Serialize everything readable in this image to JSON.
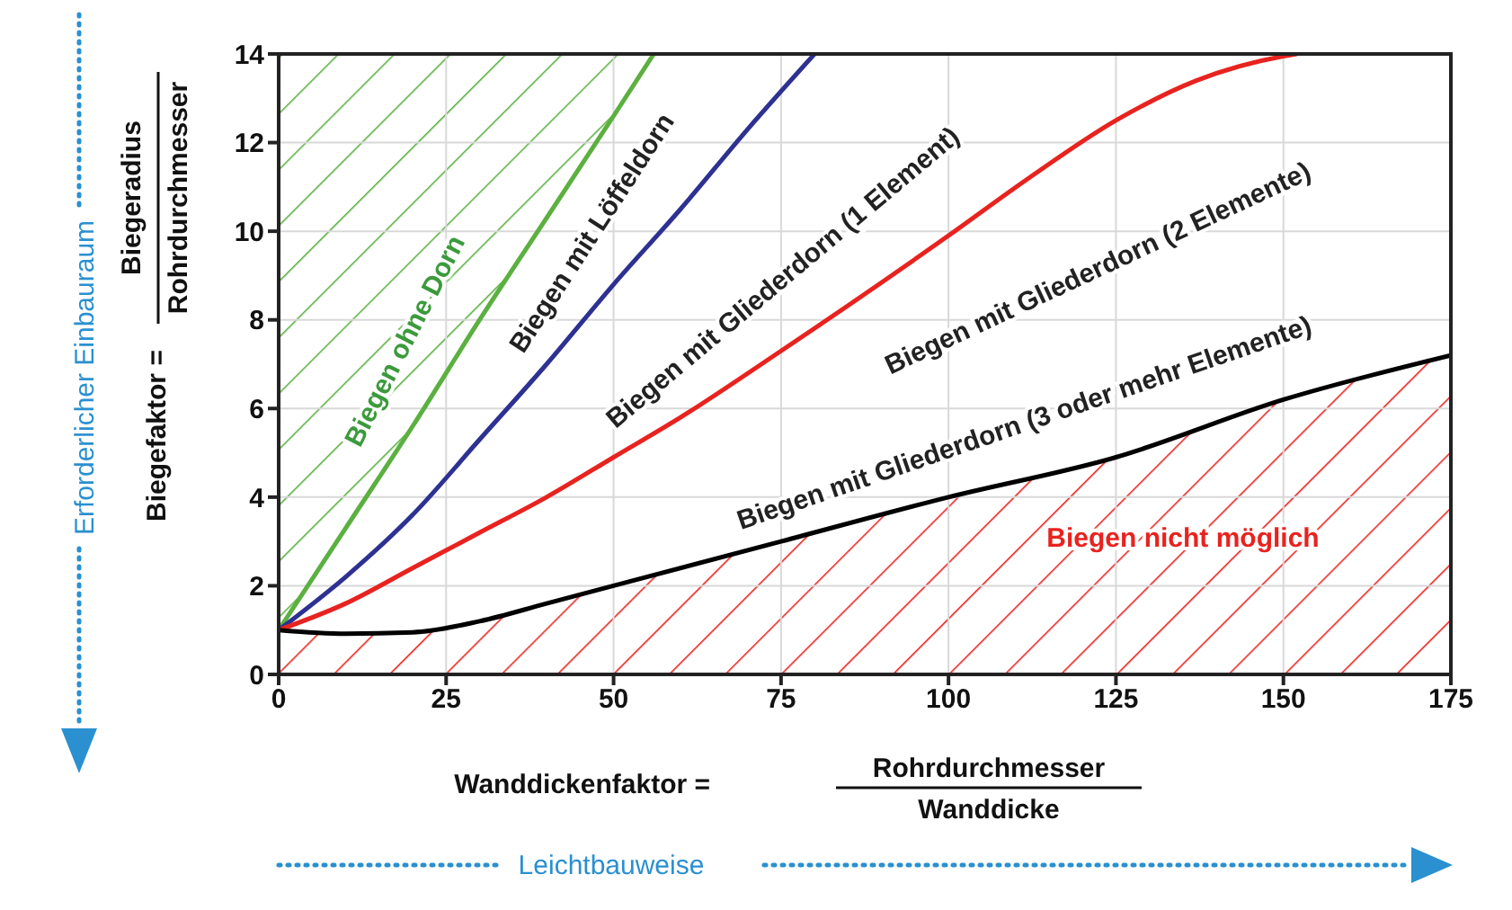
{
  "chart_data": {
    "type": "line",
    "xlabel": "Wanddickenfaktor = Rohrdurchmesser Wanddicke",
    "ylabel": "Biegefaktor = Biegeradius Rohrdurchmesser",
    "xlim": [
      0,
      175
    ],
    "xticks": [
      0,
      25,
      50,
      75,
      100,
      125,
      150,
      175
    ],
    "ylim": [
      0,
      14
    ],
    "yticks": [
      0,
      2,
      4,
      6,
      8,
      10,
      12,
      14
    ],
    "grid": true,
    "series": [
      {
        "color": "#5bb040",
        "x": [
          0,
          10,
          20,
          30,
          40,
          50,
          56
        ],
        "values": [
          1,
          3.3,
          5.6,
          8,
          10.3,
          12.6,
          14
        ]
      },
      {
        "color": "#2e3192",
        "x": [
          0,
          10,
          20,
          30,
          40,
          50,
          60,
          70,
          80
        ],
        "values": [
          1,
          2.2,
          3.6,
          5.3,
          7,
          8.8,
          10.5,
          12.3,
          14
        ]
      },
      {
        "color": "#e8231f",
        "x": [
          0,
          10,
          20,
          30,
          40,
          50,
          60,
          75,
          100,
          112,
          125,
          137,
          150,
          152
        ],
        "values": [
          1,
          1.6,
          2.4,
          3.2,
          4,
          4.9,
          5.8,
          7.3,
          9.9,
          11.2,
          12.5,
          13.4,
          13.95,
          14
        ]
      },
      {
        "color": "#000000",
        "x": [
          0,
          10,
          20,
          30,
          40,
          50,
          75,
          100,
          125,
          150,
          175
        ],
        "values": [
          1,
          0.92,
          0.95,
          1.2,
          1.6,
          2,
          3,
          4,
          4.9,
          6.2,
          7.2
        ]
      }
    ],
    "annotations": [
      "Biegen ohne Dorn",
      "Biegen mit Löffeldorn",
      "Biegen mit Gliederdorn (1 Element)",
      "Biegen mit Gliederdorn (2 Elemente)",
      "Biegen mit Gliederdorn (3 oder mehr Elemente)",
      "Biegen nicht möglich",
      "Erforderlicher Einbauraum",
      "Leichtbauweise"
    ]
  }
}
